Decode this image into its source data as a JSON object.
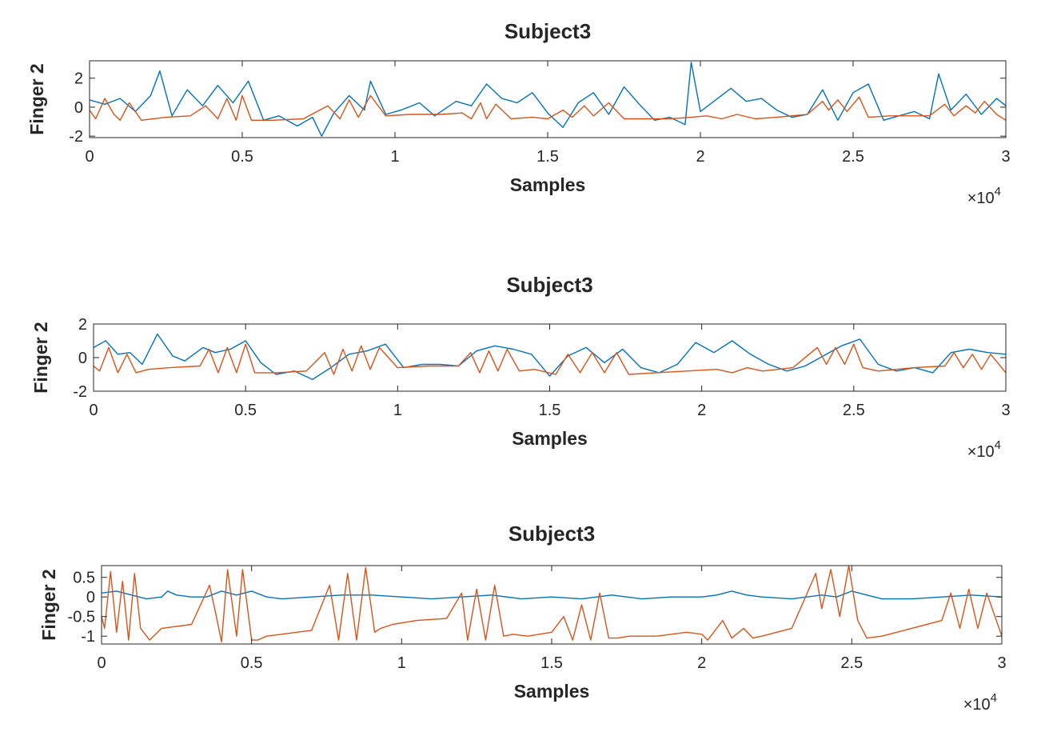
{
  "chart_data": [
    {
      "type": "line",
      "title": "Subject3",
      "xlabel": "Samples",
      "ylabel": "Finger 2",
      "x_exponent_base": "×10",
      "x_exponent_power": "4",
      "xlim": [
        0,
        3
      ],
      "ylim": [
        -2.1,
        3.2
      ],
      "xticks": [
        0,
        0.5,
        1,
        1.5,
        2,
        2.5,
        3
      ],
      "xtick_labels": [
        "0",
        "0.5",
        "1",
        "1.5",
        "2",
        "2.5",
        "3"
      ],
      "yticks": [
        -2,
        0,
        2
      ],
      "ytick_labels": [
        "-2",
        "0",
        "2"
      ],
      "grid": false,
      "series": [
        {
          "color": "#0072BD",
          "x": [
            0,
            0.05,
            0.1,
            0.15,
            0.2,
            0.23,
            0.27,
            0.32,
            0.37,
            0.42,
            0.47,
            0.52,
            0.57,
            0.62,
            0.68,
            0.73,
            0.76,
            0.8,
            0.85,
            0.9,
            0.92,
            0.97,
            1.02,
            1.08,
            1.13,
            1.2,
            1.25,
            1.3,
            1.35,
            1.4,
            1.45,
            1.5,
            1.55,
            1.6,
            1.65,
            1.7,
            1.75,
            1.8,
            1.85,
            1.9,
            1.95,
            1.97,
            2.0,
            2.05,
            2.1,
            2.15,
            2.2,
            2.25,
            2.3,
            2.35,
            2.4,
            2.45,
            2.5,
            2.55,
            2.6,
            2.65,
            2.7,
            2.75,
            2.78,
            2.82,
            2.87,
            2.92,
            2.97,
            3.0
          ],
          "y": [
            0.5,
            0.2,
            0.6,
            -0.3,
            0.8,
            2.5,
            -0.6,
            1.2,
            0.1,
            1.5,
            0.3,
            1.8,
            -0.9,
            -0.6,
            -1.3,
            -0.7,
            -2.0,
            -0.4,
            0.8,
            -0.2,
            1.8,
            -0.5,
            -0.2,
            0.3,
            -0.6,
            0.4,
            0.1,
            1.6,
            0.6,
            0.3,
            1.0,
            -0.4,
            -1.4,
            0.3,
            1.0,
            -0.5,
            1.4,
            0.2,
            -0.9,
            -0.7,
            -1.2,
            3.1,
            -0.3,
            0.5,
            1.3,
            0.4,
            0.6,
            -0.2,
            -0.7,
            -0.5,
            1.2,
            -0.9,
            1.0,
            1.6,
            -0.9,
            -0.6,
            -0.3,
            -0.8,
            2.3,
            -0.2,
            0.9,
            -0.5,
            0.6,
            0.1
          ]
        },
        {
          "color": "#D95319",
          "x": [
            0,
            0.02,
            0.05,
            0.08,
            0.1,
            0.13,
            0.17,
            0.25,
            0.33,
            0.38,
            0.42,
            0.45,
            0.48,
            0.5,
            0.53,
            0.6,
            0.7,
            0.78,
            0.82,
            0.85,
            0.88,
            0.92,
            0.97,
            1.05,
            1.15,
            1.22,
            1.25,
            1.28,
            1.3,
            1.33,
            1.38,
            1.45,
            1.5,
            1.55,
            1.58,
            1.62,
            1.65,
            1.7,
            1.75,
            1.82,
            1.9,
            1.97,
            2.02,
            2.07,
            2.12,
            2.18,
            2.25,
            2.35,
            2.4,
            2.42,
            2.45,
            2.48,
            2.52,
            2.55,
            2.62,
            2.75,
            2.8,
            2.83,
            2.87,
            2.9,
            2.93,
            2.97,
            3.0
          ],
          "y": [
            -0.2,
            -0.8,
            0.6,
            -0.5,
            -0.9,
            0.3,
            -0.9,
            -0.7,
            -0.6,
            0.1,
            -0.8,
            0.6,
            -0.9,
            0.8,
            -0.9,
            -0.9,
            -0.8,
            0.1,
            -0.8,
            0.5,
            -0.7,
            0.8,
            -0.6,
            -0.5,
            -0.5,
            -0.4,
            -0.8,
            0.3,
            -0.8,
            0.2,
            -0.8,
            -0.7,
            -0.8,
            -0.2,
            -0.7,
            0.1,
            -0.6,
            0.3,
            -0.8,
            -0.8,
            -0.8,
            -0.7,
            -0.6,
            -0.8,
            -0.5,
            -0.8,
            -0.7,
            -0.5,
            0.4,
            -0.2,
            0.5,
            -0.3,
            0.7,
            -0.7,
            -0.6,
            -0.6,
            0.2,
            -0.6,
            0.1,
            -0.4,
            0.4,
            -0.5,
            -0.9
          ]
        }
      ]
    },
    {
      "type": "line",
      "title": "Subject3",
      "xlabel": "Samples",
      "ylabel": "Finger 2",
      "x_exponent_base": "×10",
      "x_exponent_power": "4",
      "xlim": [
        0,
        3
      ],
      "ylim": [
        -2,
        2
      ],
      "xticks": [
        0,
        0.5,
        1,
        1.5,
        2,
        2.5,
        3
      ],
      "xtick_labels": [
        "0",
        "0.5",
        "1",
        "1.5",
        "2",
        "2.5",
        "3"
      ],
      "yticks": [
        -2,
        0,
        2
      ],
      "ytick_labels": [
        "-2",
        "0",
        "2"
      ],
      "grid": false,
      "series": [
        {
          "color": "#0072BD",
          "x": [
            0,
            0.04,
            0.08,
            0.12,
            0.16,
            0.21,
            0.26,
            0.3,
            0.36,
            0.4,
            0.45,
            0.5,
            0.55,
            0.6,
            0.66,
            0.72,
            0.78,
            0.84,
            0.9,
            0.96,
            1.02,
            1.08,
            1.14,
            1.2,
            1.26,
            1.32,
            1.38,
            1.44,
            1.5,
            1.56,
            1.62,
            1.68,
            1.74,
            1.8,
            1.86,
            1.92,
            1.98,
            2.04,
            2.1,
            2.16,
            2.22,
            2.28,
            2.34,
            2.4,
            2.46,
            2.52,
            2.58,
            2.64,
            2.7,
            2.76,
            2.82,
            2.88,
            2.94,
            3.0
          ],
          "y": [
            0.6,
            1.0,
            0.2,
            0.3,
            -0.4,
            1.4,
            0.1,
            -0.2,
            0.6,
            0.3,
            0.5,
            1.0,
            -0.3,
            -1.0,
            -0.8,
            -1.3,
            -0.6,
            0.2,
            0.4,
            0.8,
            -0.6,
            -0.4,
            -0.4,
            -0.5,
            0.4,
            0.7,
            0.5,
            0.2,
            -1.1,
            0.1,
            0.6,
            -0.3,
            0.5,
            -0.6,
            -0.9,
            -0.4,
            0.9,
            0.3,
            1.0,
            0.2,
            -0.4,
            -0.8,
            -0.5,
            0.1,
            0.7,
            1.1,
            -0.4,
            -0.8,
            -0.6,
            -0.9,
            0.3,
            0.5,
            0.3,
            0.2
          ]
        },
        {
          "color": "#D95319",
          "x": [
            0,
            0.02,
            0.05,
            0.08,
            0.11,
            0.14,
            0.18,
            0.25,
            0.35,
            0.38,
            0.41,
            0.44,
            0.47,
            0.5,
            0.53,
            0.6,
            0.7,
            0.76,
            0.79,
            0.82,
            0.85,
            0.88,
            0.91,
            0.94,
            1.0,
            1.1,
            1.2,
            1.24,
            1.27,
            1.3,
            1.33,
            1.36,
            1.4,
            1.45,
            1.52,
            1.56,
            1.6,
            1.64,
            1.68,
            1.72,
            1.76,
            1.85,
            1.95,
            2.05,
            2.1,
            2.15,
            2.2,
            2.3,
            2.38,
            2.41,
            2.44,
            2.47,
            2.5,
            2.53,
            2.58,
            2.7,
            2.8,
            2.83,
            2.86,
            2.89,
            2.92,
            2.95,
            3.0
          ],
          "y": [
            -0.5,
            -0.8,
            0.6,
            -0.9,
            0.2,
            -0.9,
            -0.7,
            -0.6,
            -0.5,
            0.5,
            -0.9,
            0.6,
            -0.9,
            0.8,
            -0.9,
            -0.9,
            -0.8,
            0.3,
            -1.0,
            0.5,
            -0.8,
            0.7,
            -0.7,
            0.6,
            -0.6,
            -0.5,
            -0.5,
            0.3,
            -0.9,
            0.4,
            -0.8,
            0.5,
            -0.8,
            -0.7,
            -1.0,
            0.2,
            -0.9,
            0.3,
            -0.9,
            0.3,
            -1.0,
            -0.9,
            -0.8,
            -0.7,
            -0.9,
            -0.6,
            -0.8,
            -0.6,
            0.6,
            -0.4,
            0.6,
            -0.4,
            0.8,
            -0.6,
            -0.8,
            -0.6,
            -0.5,
            0.3,
            -0.6,
            0.2,
            -0.7,
            0.2,
            -0.9
          ]
        }
      ]
    },
    {
      "type": "line",
      "title": "Subject3",
      "xlabel": "Samples",
      "ylabel": "Finger 2",
      "x_exponent_base": "×10",
      "x_exponent_power": "4",
      "xlim": [
        0,
        3
      ],
      "ylim": [
        -1.2,
        0.8
      ],
      "xticks": [
        0,
        0.5,
        1,
        1.5,
        2,
        2.5,
        3
      ],
      "xtick_labels": [
        "0",
        "0.5",
        "1",
        "1.5",
        "2",
        "2.5",
        "3"
      ],
      "yticks": [
        0.5,
        0,
        -0.5,
        -1
      ],
      "ytick_labels": [
        "0.5",
        "0",
        "-0.5",
        "-1"
      ],
      "grid": false,
      "series": [
        {
          "color": "#0072BD",
          "x": [
            0,
            0.05,
            0.1,
            0.15,
            0.2,
            0.22,
            0.25,
            0.3,
            0.35,
            0.4,
            0.45,
            0.5,
            0.55,
            0.6,
            0.7,
            0.8,
            0.9,
            1.0,
            1.1,
            1.2,
            1.3,
            1.4,
            1.5,
            1.6,
            1.7,
            1.8,
            1.9,
            2.0,
            2.05,
            2.1,
            2.15,
            2.2,
            2.3,
            2.4,
            2.45,
            2.5,
            2.55,
            2.6,
            2.7,
            2.8,
            2.9,
            3.0
          ],
          "y": [
            0.1,
            0.15,
            0.05,
            -0.05,
            0.0,
            0.15,
            0.05,
            0.0,
            0.0,
            0.15,
            0.05,
            0.15,
            0.0,
            -0.05,
            0.0,
            0.05,
            0.05,
            0.0,
            -0.05,
            0.0,
            0.05,
            -0.05,
            0.0,
            -0.05,
            0.05,
            -0.05,
            0.0,
            0.0,
            0.05,
            0.15,
            0.05,
            0.0,
            -0.05,
            0.05,
            0.0,
            0.15,
            0.05,
            -0.05,
            -0.05,
            0.0,
            0.05,
            0.0
          ]
        },
        {
          "color": "#D95319",
          "x": [
            0,
            0.01,
            0.03,
            0.05,
            0.07,
            0.09,
            0.11,
            0.13,
            0.16,
            0.2,
            0.3,
            0.36,
            0.38,
            0.4,
            0.42,
            0.45,
            0.47,
            0.5,
            0.52,
            0.55,
            0.6,
            0.7,
            0.76,
            0.79,
            0.82,
            0.85,
            0.88,
            0.91,
            0.93,
            0.97,
            1.05,
            1.15,
            1.2,
            1.22,
            1.25,
            1.28,
            1.31,
            1.34,
            1.37,
            1.42,
            1.5,
            1.54,
            1.57,
            1.6,
            1.63,
            1.66,
            1.69,
            1.72,
            1.76,
            1.85,
            1.95,
            2.0,
            2.02,
            2.07,
            2.1,
            2.14,
            2.17,
            2.2,
            2.3,
            2.38,
            2.4,
            2.43,
            2.46,
            2.49,
            2.52,
            2.55,
            2.6,
            2.7,
            2.8,
            2.83,
            2.86,
            2.89,
            2.92,
            2.95,
            3.0
          ],
          "y": [
            -0.5,
            -0.8,
            0.65,
            -0.9,
            0.4,
            -1.1,
            0.6,
            -0.8,
            -1.1,
            -0.8,
            -0.7,
            0.3,
            -0.4,
            -1.15,
            0.7,
            -1.0,
            0.7,
            -1.1,
            -1.1,
            -1.0,
            -0.95,
            -0.85,
            0.3,
            -1.1,
            0.6,
            -1.1,
            0.75,
            -0.9,
            -0.8,
            -0.7,
            -0.6,
            -0.55,
            0.1,
            -1.1,
            0.2,
            -1.1,
            0.3,
            -1.0,
            -0.95,
            -1.0,
            -0.9,
            -0.5,
            -1.1,
            -0.2,
            -1.1,
            0.1,
            -1.05,
            -1.05,
            -1.0,
            -1.0,
            -0.9,
            -0.95,
            -1.1,
            -0.6,
            -1.05,
            -0.8,
            -1.05,
            -1.0,
            -0.8,
            0.6,
            -0.3,
            0.7,
            -0.5,
            0.8,
            -0.6,
            -1.05,
            -1.0,
            -0.8,
            -0.6,
            0.1,
            -0.8,
            0.2,
            -0.8,
            0.1,
            -1.0
          ]
        }
      ]
    }
  ]
}
